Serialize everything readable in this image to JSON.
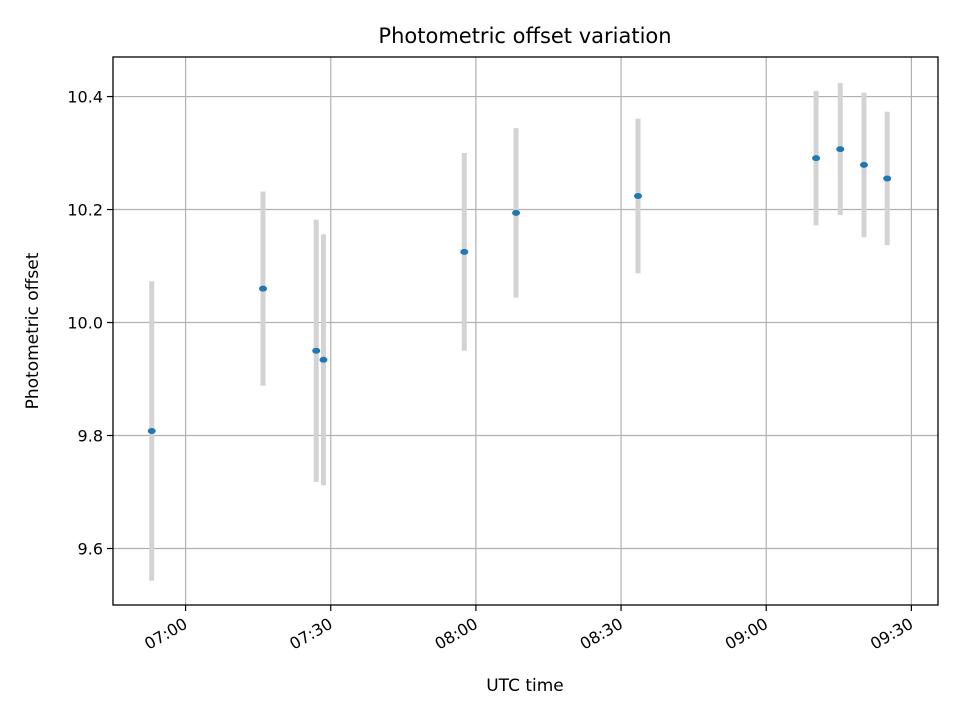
{
  "chart_data": {
    "type": "scatter",
    "title": "Photometric offset variation",
    "xlabel": "UTC time",
    "ylabel": "Photometric offset",
    "x_tick_labels": [
      "07:00",
      "07:30",
      "08:00",
      "08:30",
      "09:00",
      "09:30"
    ],
    "x_ticks_min": [
      420,
      450,
      480,
      510,
      540,
      570
    ],
    "y_ticks": [
      9.6,
      9.8,
      10.0,
      10.2,
      10.4
    ],
    "y_tick_labels": [
      "9.6",
      "9.8",
      "10.0",
      "10.2",
      "10.4"
    ],
    "xlim_min": [
      405,
      575.5
    ],
    "ylim": [
      9.5,
      10.47
    ],
    "grid": true,
    "point_color": "#1f77b4",
    "errorbar_color": "#d3d3d3",
    "series": [
      {
        "points": [
          {
            "t": "06:53",
            "x_min": 413,
            "y": 9.808,
            "err": 0.265
          },
          {
            "t": "07:16",
            "x_min": 436,
            "y": 10.06,
            "err": 0.172
          },
          {
            "t": "07:27",
            "x_min": 447,
            "y": 9.95,
            "err": 0.232
          },
          {
            "t": "07:28",
            "x_min": 448.5,
            "y": 9.934,
            "err": 0.222
          },
          {
            "t": "07:58",
            "x_min": 477.6,
            "y": 10.125,
            "err": 0.175
          },
          {
            "t": "08:08",
            "x_min": 488.3,
            "y": 10.194,
            "err": 0.15
          },
          {
            "t": "08:34",
            "x_min": 513.5,
            "y": 10.224,
            "err": 0.137
          },
          {
            "t": "09:10",
            "x_min": 550.3,
            "y": 10.291,
            "err": 0.119
          },
          {
            "t": "09:15",
            "x_min": 555.3,
            "y": 10.307,
            "err": 0.117
          },
          {
            "t": "09:20",
            "x_min": 560.2,
            "y": 10.279,
            "err": 0.128
          },
          {
            "t": "09:25",
            "x_min": 565,
            "y": 10.255,
            "err": 0.118
          }
        ]
      }
    ]
  }
}
